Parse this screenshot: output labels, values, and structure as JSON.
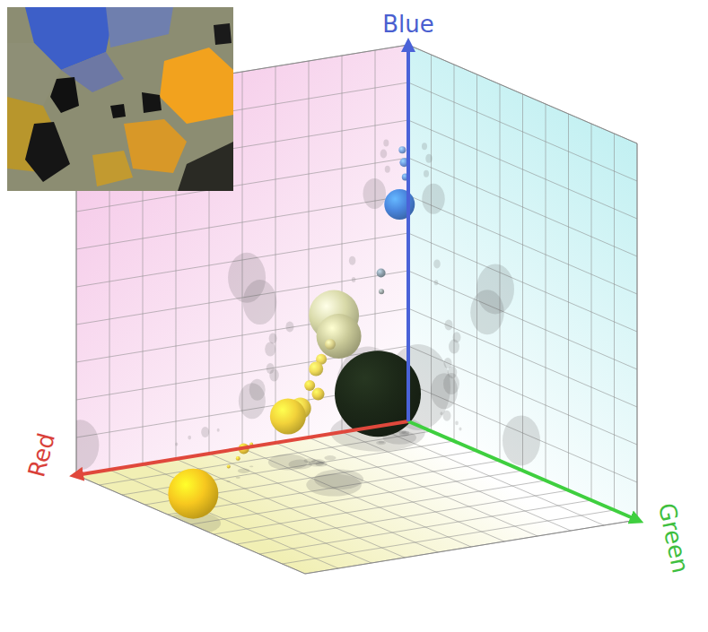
{
  "chart_data": {
    "type": "bubble",
    "xlabel": "Red",
    "ylabel": "Green",
    "zlabel": "Blue",
    "xlim": [
      0,
      255
    ],
    "ylim": [
      0,
      255
    ],
    "zlim": [
      0,
      255
    ],
    "xticks": [
      0,
      25.5,
      51,
      76.5,
      102,
      127.5,
      153,
      178.5,
      204,
      229.5,
      255
    ],
    "yticks": [
      0,
      25.5,
      51,
      76.5,
      102,
      127.5,
      153,
      178.5,
      204,
      229.5,
      255
    ],
    "zticks": [
      0,
      25.5,
      51,
      76.5,
      102,
      127.5,
      153,
      178.5,
      204,
      229.5,
      255
    ],
    "grid": true,
    "tick_labels": false,
    "x": [
      19,
      17,
      16,
      26,
      43,
      42,
      31,
      124,
      114,
      91,
      104,
      106,
      106,
      103,
      116,
      120,
      146,
      156,
      168,
      178,
      252
    ],
    "y": [
      23,
      18,
      20,
      28,
      32,
      31,
      11,
      97,
      88,
      45,
      54,
      51,
      44,
      49,
      48,
      40,
      37,
      43,
      54,
      58,
      126
    ],
    "z": [
      184,
      191,
      173,
      158,
      115,
      102,
      26,
      115,
      97,
      77,
      71,
      64,
      51,
      46,
      38,
      31,
      15,
      15,
      13,
      10,
      20
    ],
    "sizes": [
      25,
      16,
      16,
      289,
      25,
      9,
      2304,
      784,
      625,
      36,
      36,
      64,
      36,
      49,
      144,
      400,
      4,
      36,
      6,
      4,
      784
    ],
    "colors": [
      "#6f9ae0",
      "#7fa4e0",
      "#6a96dc",
      "#4a86de",
      "#8d9eaa",
      "#9aa4a4",
      "#1c2818",
      "#d8d9a8",
      "#c9c998",
      "#dcd38c",
      "#efd85c",
      "#f1dc5a",
      "#eed44a",
      "#ebd04a",
      "#f0d548",
      "#f2d23a",
      "#e8c840",
      "#ecc83c",
      "#e8c840",
      "#e8c840",
      "#f7c81f"
    ]
  }
}
